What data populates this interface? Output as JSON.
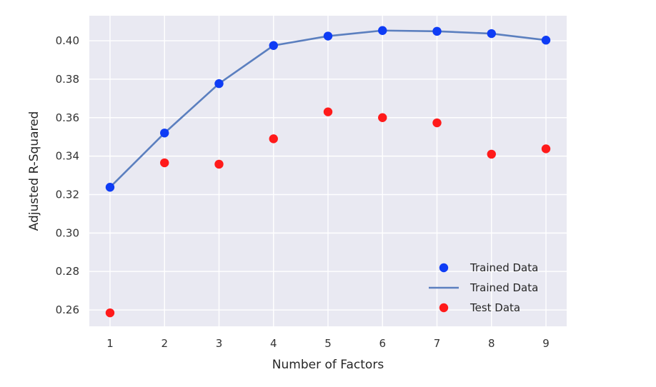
{
  "chart_data": {
    "type": "scatter",
    "title": "",
    "xlabel": "Number of Factors",
    "ylabel": "Adjusted R-Squared",
    "x": [
      1,
      2,
      3,
      4,
      5,
      6,
      7,
      8,
      9
    ],
    "xlim": [
      0.62,
      9.38
    ],
    "ylim": [
      0.2515,
      0.413
    ],
    "xticks": [
      "1",
      "2",
      "3",
      "4",
      "5",
      "6",
      "7",
      "8",
      "9"
    ],
    "yticks": [
      "0.26",
      "0.28",
      "0.30",
      "0.32",
      "0.34",
      "0.36",
      "0.38",
      "0.40"
    ],
    "grid": true,
    "series": [
      {
        "name": "Trained Data",
        "kind": "scatter",
        "color": "#0e3cf5",
        "values": [
          0.3238,
          0.352,
          0.3777,
          0.3975,
          0.4024,
          0.4053,
          0.4049,
          0.4037,
          0.4003
        ]
      },
      {
        "name": "Trained Data",
        "kind": "line",
        "color": "#5b7fbf",
        "values": [
          0.3238,
          0.352,
          0.3777,
          0.3975,
          0.4024,
          0.4053,
          0.4049,
          0.4037,
          0.4003
        ]
      },
      {
        "name": "Test Data",
        "kind": "scatter",
        "color": "#ff1a1a",
        "values": [
          0.2585,
          0.3365,
          0.3358,
          0.349,
          0.363,
          0.36,
          0.3573,
          0.341,
          0.3438
        ]
      }
    ],
    "legend": {
      "position": "lower-right"
    },
    "colors": {
      "plot_background": "#e9e9f2",
      "grid": "#ffffff"
    }
  }
}
